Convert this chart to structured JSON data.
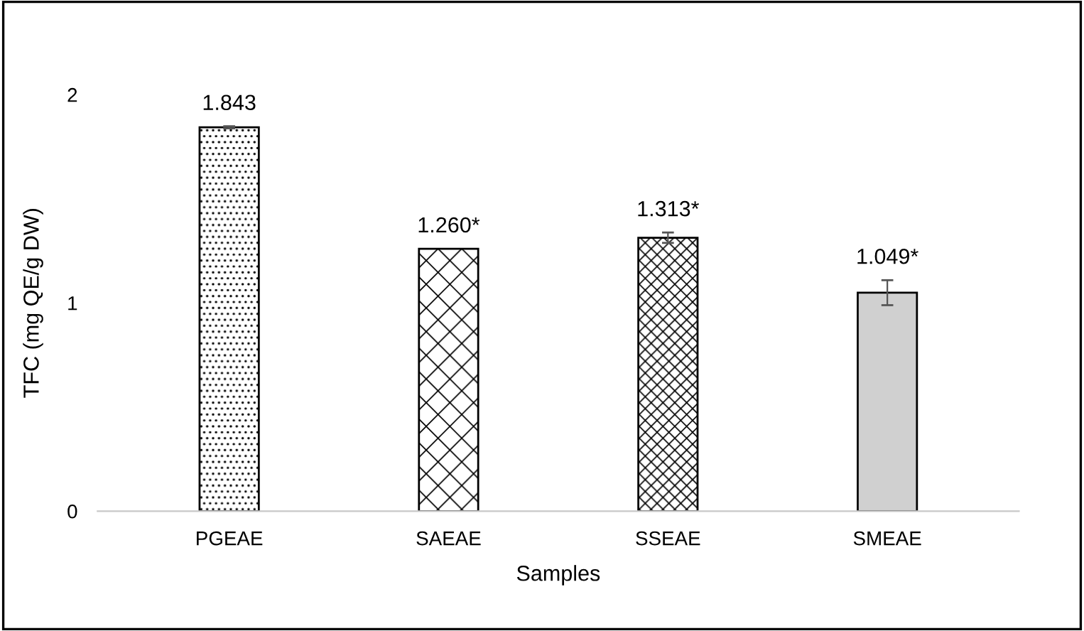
{
  "chart_data": {
    "type": "bar",
    "xlabel": "Samples",
    "ylabel": "TFC (mg QE/g DW)",
    "categories": [
      "PGEAE",
      "SAEAE",
      "SSEAE",
      "SMEAE"
    ],
    "values": [
      1.843,
      1.26,
      1.313,
      1.049
    ],
    "value_labels": [
      "1.843",
      "1.260*",
      "1.313*",
      "1.049*"
    ],
    "errors": [
      0.005,
      null,
      0.025,
      0.06
    ],
    "colors": [
      "#000000",
      "#000000",
      "#000000",
      "#d0d0d0"
    ],
    "ylim": [
      0,
      2
    ],
    "yticks": [
      0,
      1,
      2
    ],
    "grid": false,
    "legend": false
  }
}
